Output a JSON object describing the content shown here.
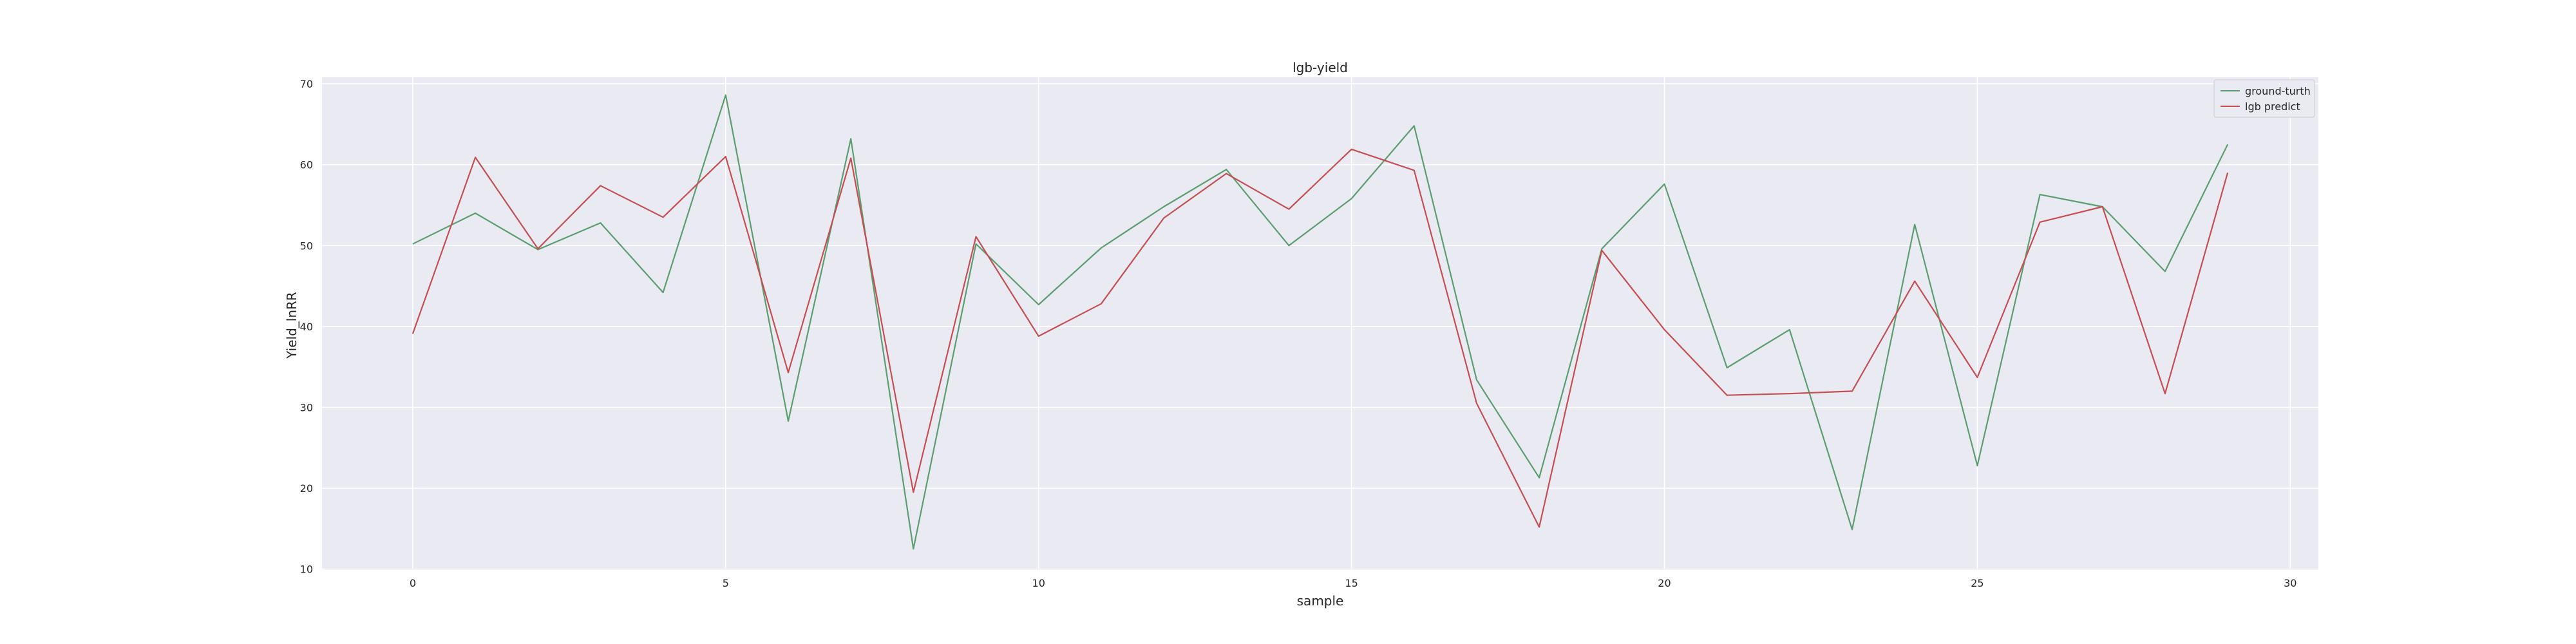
{
  "chart_data": {
    "type": "line",
    "title": "lgb-yield",
    "xlabel": "sample",
    "ylabel": "Yield_lnRR",
    "xlim": [
      -1.45,
      30.45
    ],
    "ylim": [
      9.9,
      70.8
    ],
    "xticks": [
      0,
      5,
      10,
      15,
      20,
      25,
      30
    ],
    "yticks": [
      10,
      20,
      30,
      40,
      50,
      60,
      70
    ],
    "grid": true,
    "legend_position": "top-right",
    "x": [
      0,
      1,
      2,
      3,
      4,
      5,
      6,
      7,
      8,
      9,
      10,
      11,
      12,
      13,
      14,
      15,
      16,
      17,
      18,
      19,
      20,
      21,
      22,
      23,
      24,
      25,
      26,
      27,
      28,
      29
    ],
    "series": [
      {
        "name": "ground-turth",
        "color": "#5a9e6f",
        "values": [
          50.2,
          54.0,
          49.5,
          52.8,
          44.2,
          68.6,
          28.3,
          63.2,
          12.5,
          50.2,
          42.7,
          49.7,
          54.8,
          59.4,
          50.0,
          55.8,
          64.8,
          33.4,
          21.3,
          49.6,
          57.6,
          34.9,
          39.6,
          14.9,
          52.6,
          22.8,
          56.3,
          54.8,
          46.8,
          62.5
        ]
      },
      {
        "name": "lgb predict",
        "color": "#c44e52",
        "values": [
          39.1,
          60.9,
          49.6,
          57.4,
          53.5,
          61.0,
          34.3,
          60.8,
          19.5,
          51.1,
          38.8,
          42.8,
          53.4,
          58.9,
          54.5,
          61.9,
          59.3,
          30.5,
          15.2,
          49.4,
          39.6,
          31.5,
          31.7,
          32.0,
          45.6,
          33.7,
          52.9,
          54.8,
          31.7,
          59.0
        ]
      }
    ]
  },
  "colors": {
    "plot_background": "#eaeaf2",
    "grid": "#ffffff"
  }
}
